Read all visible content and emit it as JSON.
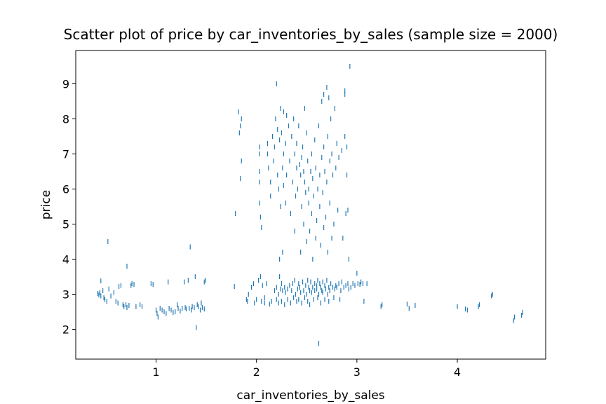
{
  "chart_data": {
    "type": "scatter",
    "title": "Scatter plot of price by car_inventories_by_sales (sample size = 2000)",
    "xlabel": "car_inventories_by_sales",
    "ylabel": "price",
    "xlim": [
      0.2,
      4.88
    ],
    "ylim": [
      1.15,
      9.95
    ],
    "xticks": [
      1,
      2,
      3,
      4
    ],
    "yticks": [
      2,
      3,
      4,
      5,
      6,
      7,
      8,
      9
    ],
    "grid": false,
    "legend": "none",
    "marker": "|",
    "color": "#1f77b4",
    "series": [
      {
        "values": [
          [
            0.42,
            3.02
          ],
          [
            0.43,
            2.98
          ],
          [
            0.44,
            3.05
          ],
          [
            0.45,
            2.95
          ],
          [
            0.45,
            3.38
          ],
          [
            0.47,
            3.1
          ],
          [
            0.48,
            2.9
          ],
          [
            0.49,
            2.85
          ],
          [
            0.51,
            2.8
          ],
          [
            0.52,
            4.5
          ],
          [
            0.53,
            3.15
          ],
          [
            0.55,
            2.95
          ],
          [
            0.58,
            3.05
          ],
          [
            0.6,
            2.8
          ],
          [
            0.62,
            2.75
          ],
          [
            0.63,
            3.22
          ],
          [
            0.65,
            3.25
          ],
          [
            0.67,
            2.7
          ],
          [
            0.68,
            2.65
          ],
          [
            0.7,
            2.7
          ],
          [
            0.71,
            2.62
          ],
          [
            0.73,
            2.68
          ],
          [
            0.75,
            3.25
          ],
          [
            0.76,
            3.3
          ],
          [
            0.78,
            3.28
          ],
          [
            0.8,
            2.65
          ],
          [
            0.84,
            2.7
          ],
          [
            0.86,
            2.65
          ],
          [
            0.71,
            3.8
          ],
          [
            0.95,
            3.3
          ],
          [
            0.97,
            3.28
          ],
          [
            1.0,
            2.55
          ],
          [
            1.01,
            2.45
          ],
          [
            1.02,
            2.35
          ],
          [
            1.04,
            2.6
          ],
          [
            1.06,
            2.55
          ],
          [
            1.08,
            2.5
          ],
          [
            1.1,
            2.45
          ],
          [
            1.12,
            3.35
          ],
          [
            1.13,
            2.6
          ],
          [
            1.15,
            2.55
          ],
          [
            1.17,
            2.48
          ],
          [
            1.19,
            2.5
          ],
          [
            1.21,
            2.7
          ],
          [
            1.22,
            2.6
          ],
          [
            1.24,
            2.52
          ],
          [
            1.26,
            2.6
          ],
          [
            1.28,
            3.35
          ],
          [
            1.29,
            2.62
          ],
          [
            1.3,
            2.58
          ],
          [
            1.32,
            3.4
          ],
          [
            1.33,
            2.6
          ],
          [
            1.34,
            4.35
          ],
          [
            1.35,
            2.55
          ],
          [
            1.36,
            2.65
          ],
          [
            1.38,
            2.62
          ],
          [
            1.39,
            3.5
          ],
          [
            1.4,
            2.05
          ],
          [
            1.41,
            2.7
          ],
          [
            1.42,
            2.65
          ],
          [
            1.44,
            2.55
          ],
          [
            1.45,
            2.75
          ],
          [
            1.46,
            2.62
          ],
          [
            1.48,
            2.58
          ],
          [
            1.48,
            3.35
          ],
          [
            1.49,
            3.4
          ],
          [
            1.78,
            3.22
          ],
          [
            1.79,
            5.3
          ],
          [
            1.82,
            8.2
          ],
          [
            1.83,
            7.6
          ],
          [
            1.84,
            7.8
          ],
          [
            1.85,
            8.0
          ],
          [
            1.85,
            6.8
          ],
          [
            1.84,
            6.3
          ],
          [
            1.9,
            2.85
          ],
          [
            1.91,
            2.8
          ],
          [
            1.92,
            3.0
          ],
          [
            1.95,
            3.2
          ],
          [
            1.97,
            3.3
          ],
          [
            1.98,
            2.75
          ],
          [
            2.0,
            2.85
          ],
          [
            2.02,
            3.4
          ],
          [
            2.04,
            3.5
          ],
          [
            2.05,
            2.8
          ],
          [
            2.03,
            7.2
          ],
          [
            2.03,
            7.0
          ],
          [
            2.03,
            6.5
          ],
          [
            2.03,
            6.2
          ],
          [
            2.03,
            5.6
          ],
          [
            2.04,
            5.2
          ],
          [
            2.05,
            4.9
          ],
          [
            2.06,
            3.25
          ],
          [
            2.08,
            2.75
          ],
          [
            2.08,
            2.9
          ],
          [
            2.1,
            3.3
          ],
          [
            2.11,
            7.3
          ],
          [
            2.11,
            7.0
          ],
          [
            2.12,
            6.6
          ],
          [
            2.13,
            2.72
          ],
          [
            2.14,
            6.2
          ],
          [
            2.14,
            5.8
          ],
          [
            2.15,
            2.8
          ],
          [
            2.16,
            7.5
          ],
          [
            2.17,
            6.8
          ],
          [
            2.18,
            3.1
          ],
          [
            2.18,
            7.2
          ],
          [
            2.19,
            8.0
          ],
          [
            2.2,
            2.85
          ],
          [
            2.2,
            3.2
          ],
          [
            2.2,
            9.0
          ],
          [
            2.21,
            7.7
          ],
          [
            2.21,
            6.4
          ],
          [
            2.22,
            3.0
          ],
          [
            2.22,
            2.75
          ],
          [
            2.22,
            6.0
          ],
          [
            2.23,
            3.5
          ],
          [
            2.23,
            7.4
          ],
          [
            2.23,
            4.0
          ],
          [
            2.24,
            3.15
          ],
          [
            2.24,
            8.3
          ],
          [
            2.24,
            5.5
          ],
          [
            2.25,
            2.8
          ],
          [
            2.25,
            7.6
          ],
          [
            2.25,
            3.3
          ],
          [
            2.26,
            6.6
          ],
          [
            2.26,
            3.1
          ],
          [
            2.26,
            4.2
          ],
          [
            2.27,
            6.1
          ],
          [
            2.27,
            7.0
          ],
          [
            2.27,
            8.2
          ],
          [
            2.28,
            3.2
          ],
          [
            2.28,
            2.7
          ],
          [
            2.29,
            5.6
          ],
          [
            2.29,
            7.3
          ],
          [
            2.29,
            3.05
          ],
          [
            2.3,
            8.1
          ],
          [
            2.3,
            6.4
          ],
          [
            2.31,
            3.15
          ],
          [
            2.31,
            2.85
          ],
          [
            2.32,
            7.8
          ],
          [
            2.33,
            3.25
          ],
          [
            2.33,
            6.8
          ],
          [
            2.34,
            5.3
          ],
          [
            2.34,
            2.75
          ],
          [
            2.35,
            7.5
          ],
          [
            2.35,
            3.1
          ],
          [
            2.36,
            6.2
          ],
          [
            2.36,
            3.3
          ],
          [
            2.37,
            8.0
          ],
          [
            2.37,
            2.9
          ],
          [
            2.38,
            3.4
          ],
          [
            2.38,
            7.0
          ],
          [
            2.38,
            4.8
          ],
          [
            2.39,
            5.8
          ],
          [
            2.39,
            3.0
          ],
          [
            2.4,
            6.6
          ],
          [
            2.4,
            7.3
          ],
          [
            2.4,
            2.8
          ],
          [
            2.41,
            3.15
          ],
          [
            2.41,
            6.0
          ],
          [
            2.42,
            3.3
          ],
          [
            2.42,
            2.85
          ],
          [
            2.42,
            7.8
          ],
          [
            2.43,
            6.7
          ],
          [
            2.43,
            3.2
          ],
          [
            2.44,
            6.4
          ],
          [
            2.44,
            4.2
          ],
          [
            2.44,
            3.05
          ],
          [
            2.45,
            5.5
          ],
          [
            2.45,
            6.9
          ],
          [
            2.45,
            2.75
          ],
          [
            2.46,
            7.2
          ],
          [
            2.46,
            3.35
          ],
          [
            2.47,
            6.5
          ],
          [
            2.47,
            3.1
          ],
          [
            2.47,
            5.0
          ],
          [
            2.48,
            2.9
          ],
          [
            2.48,
            8.3
          ],
          [
            2.48,
            6.2
          ],
          [
            2.49,
            3.25
          ],
          [
            2.49,
            5.9
          ],
          [
            2.5,
            3.0
          ],
          [
            2.5,
            4.5
          ],
          [
            2.5,
            7.6
          ],
          [
            2.51,
            3.4
          ],
          [
            2.51,
            2.8
          ],
          [
            2.51,
            6.8
          ],
          [
            2.52,
            6.0
          ],
          [
            2.52,
            3.2
          ],
          [
            2.52,
            5.6
          ],
          [
            2.53,
            3.1
          ],
          [
            2.53,
            4.8
          ],
          [
            2.53,
            2.7
          ],
          [
            2.54,
            6.5
          ],
          [
            2.54,
            3.35
          ],
          [
            2.55,
            7.0
          ],
          [
            2.55,
            3.05
          ],
          [
            2.55,
            5.3
          ],
          [
            2.56,
            3.2
          ],
          [
            2.56,
            4.0
          ],
          [
            2.56,
            6.3
          ],
          [
            2.57,
            2.85
          ],
          [
            2.57,
            5.8
          ],
          [
            2.58,
            3.3
          ],
          [
            2.58,
            7.4
          ],
          [
            2.58,
            3.1
          ],
          [
            2.59,
            6.6
          ],
          [
            2.59,
            4.6
          ],
          [
            2.6,
            3.25
          ],
          [
            2.6,
            3.15
          ],
          [
            2.6,
            5.1
          ],
          [
            2.61,
            3.4
          ],
          [
            2.61,
            2.9
          ],
          [
            2.61,
            6.0
          ],
          [
            2.62,
            3.0
          ],
          [
            2.62,
            7.8
          ],
          [
            2.62,
            1.6
          ],
          [
            2.63,
            3.3
          ],
          [
            2.63,
            6.4
          ],
          [
            2.63,
            5.5
          ],
          [
            2.64,
            3.2
          ],
          [
            2.64,
            4.4
          ],
          [
            2.64,
            2.75
          ],
          [
            2.65,
            3.1
          ],
          [
            2.65,
            8.5
          ],
          [
            2.65,
            6.9
          ],
          [
            2.66,
            3.35
          ],
          [
            2.66,
            5.9
          ],
          [
            2.66,
            3.05
          ],
          [
            2.67,
            8.7
          ],
          [
            2.67,
            7.2
          ],
          [
            2.67,
            4.9
          ],
          [
            2.68,
            3.25
          ],
          [
            2.68,
            6.5
          ],
          [
            2.68,
            2.85
          ],
          [
            2.69,
            3.15
          ],
          [
            2.69,
            5.2
          ],
          [
            2.7,
            8.9
          ],
          [
            2.7,
            3.4
          ],
          [
            2.7,
            6.2
          ],
          [
            2.71,
            3.0
          ],
          [
            2.71,
            7.5
          ],
          [
            2.71,
            4.2
          ],
          [
            2.72,
            3.2
          ],
          [
            2.72,
            8.6
          ],
          [
            2.72,
            2.8
          ],
          [
            2.73,
            6.8
          ],
          [
            2.73,
            3.1
          ],
          [
            2.73,
            5.6
          ],
          [
            2.74,
            8.0
          ],
          [
            2.74,
            3.3
          ],
          [
            2.75,
            7.0
          ],
          [
            2.75,
            4.6
          ],
          [
            2.76,
            3.2
          ],
          [
            2.76,
            6.4
          ],
          [
            2.77,
            2.9
          ],
          [
            2.77,
            5.0
          ],
          [
            2.78,
            8.3
          ],
          [
            2.78,
            3.15
          ],
          [
            2.79,
            6.6
          ],
          [
            2.79,
            3.25
          ],
          [
            2.8,
            7.3
          ],
          [
            2.8,
            3.2
          ],
          [
            2.81,
            5.4
          ],
          [
            2.82,
            3.3
          ],
          [
            2.82,
            6.9
          ],
          [
            2.83,
            2.85
          ],
          [
            2.84,
            3.1
          ],
          [
            2.85,
            7.1
          ],
          [
            2.85,
            3.35
          ],
          [
            2.86,
            4.6
          ],
          [
            2.87,
            3.2
          ],
          [
            2.88,
            7.5
          ],
          [
            2.88,
            8.7
          ],
          [
            2.88,
            8.8
          ],
          [
            2.89,
            3.25
          ],
          [
            2.89,
            5.3
          ],
          [
            2.9,
            7.2
          ],
          [
            2.9,
            6.4
          ],
          [
            2.91,
            3.3
          ],
          [
            2.91,
            5.4
          ],
          [
            2.92,
            4.0
          ],
          [
            2.92,
            3.15
          ],
          [
            2.93,
            9.5
          ],
          [
            2.94,
            3.2
          ],
          [
            2.96,
            3.3
          ],
          [
            2.98,
            3.25
          ],
          [
            3.0,
            3.6
          ],
          [
            3.01,
            3.3
          ],
          [
            3.03,
            3.28
          ],
          [
            3.04,
            3.35
          ],
          [
            3.06,
            3.3
          ],
          [
            3.07,
            2.8
          ],
          [
            3.1,
            3.3
          ],
          [
            3.24,
            2.65
          ],
          [
            3.25,
            2.7
          ],
          [
            3.5,
            2.72
          ],
          [
            3.52,
            2.6
          ],
          [
            3.58,
            2.68
          ],
          [
            4.0,
            2.65
          ],
          [
            4.08,
            2.58
          ],
          [
            4.1,
            2.55
          ],
          [
            4.21,
            2.65
          ],
          [
            4.22,
            2.7
          ],
          [
            4.34,
            2.95
          ],
          [
            4.35,
            3.0
          ],
          [
            4.56,
            2.25
          ],
          [
            4.57,
            2.35
          ],
          [
            4.64,
            2.4
          ],
          [
            4.65,
            2.48
          ]
        ]
      }
    ]
  }
}
